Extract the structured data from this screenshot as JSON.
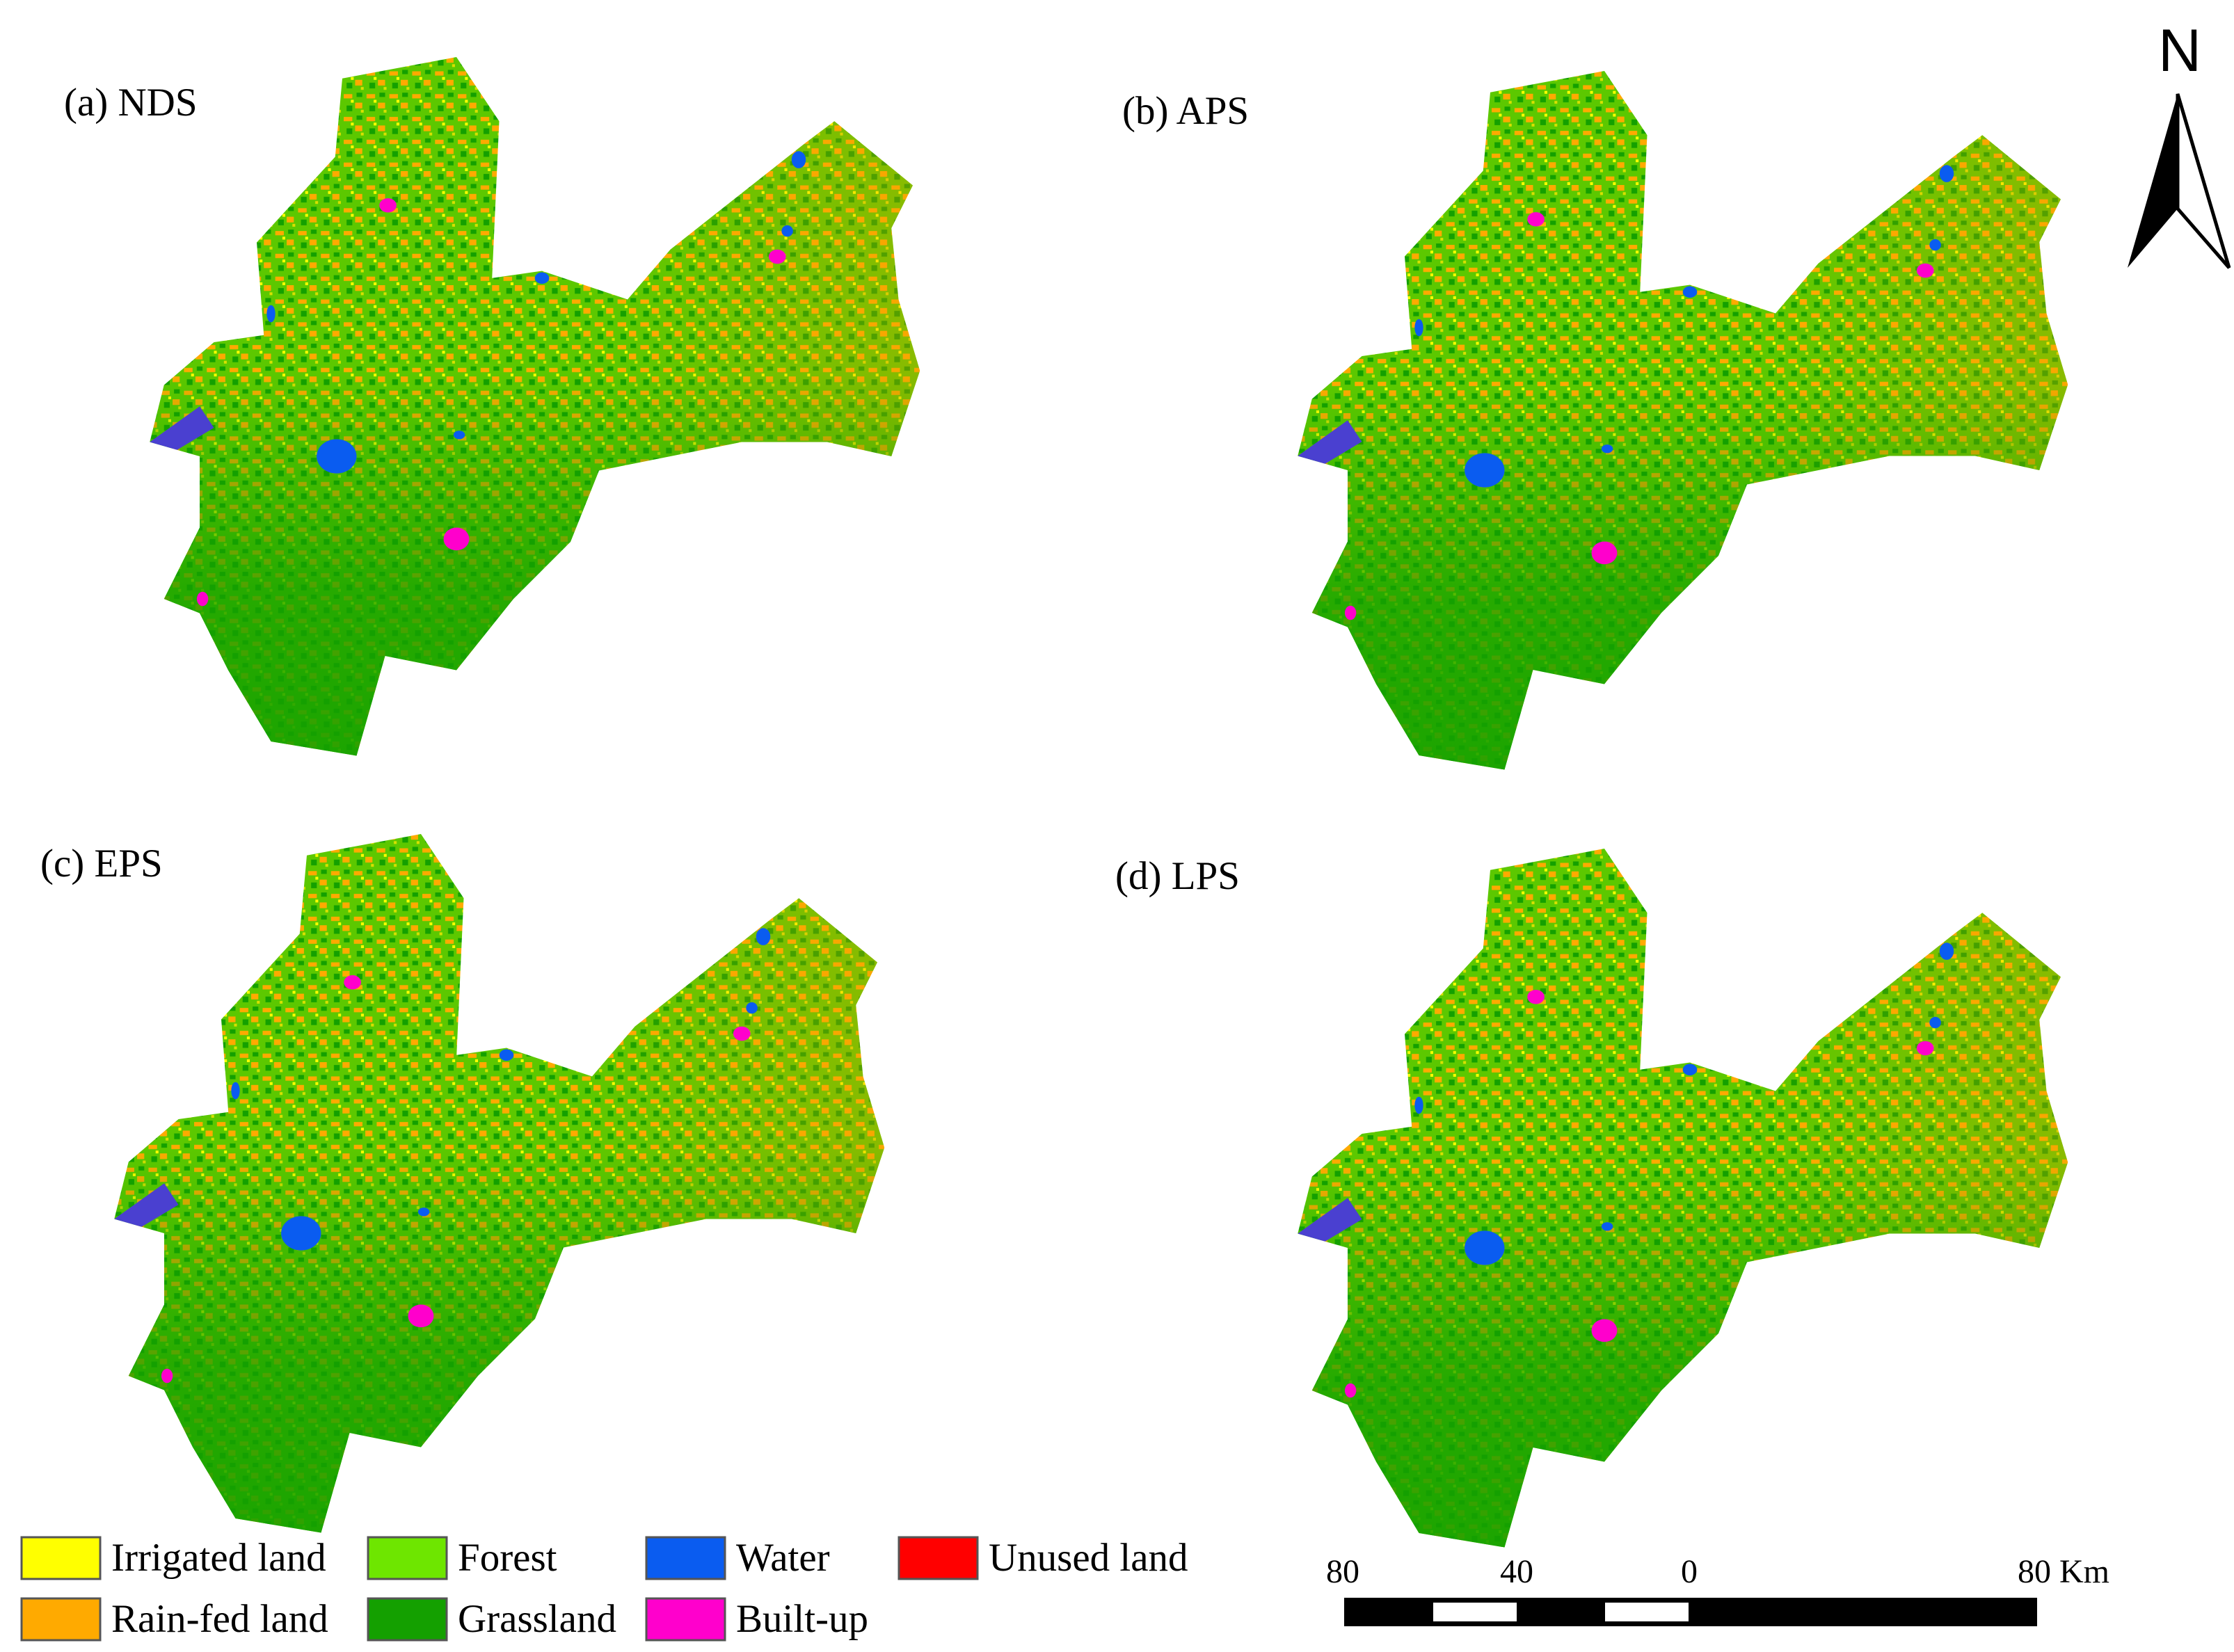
{
  "panels": [
    {
      "label": "(a) NDS"
    },
    {
      "label": "(b) APS"
    },
    {
      "label": "(c) EPS"
    },
    {
      "label": "(d) LPS"
    }
  ],
  "north_arrow": {
    "label": "N"
  },
  "legend": [
    {
      "name": "Irrigated land",
      "color": "#ffff00"
    },
    {
      "name": "Forest",
      "color": "#6ee600"
    },
    {
      "name": "Water",
      "color": "#0a5cf0"
    },
    {
      "name": "Unused land",
      "color": "#ff0000"
    },
    {
      "name": "Rain-fed land",
      "color": "#ffaa00"
    },
    {
      "name": "Grassland",
      "color": "#14a000"
    },
    {
      "name": "Built-up",
      "color": "#ff00cc"
    }
  ],
  "scale_bar": {
    "labels": [
      "80",
      "40",
      "0",
      "80 Km"
    ]
  }
}
